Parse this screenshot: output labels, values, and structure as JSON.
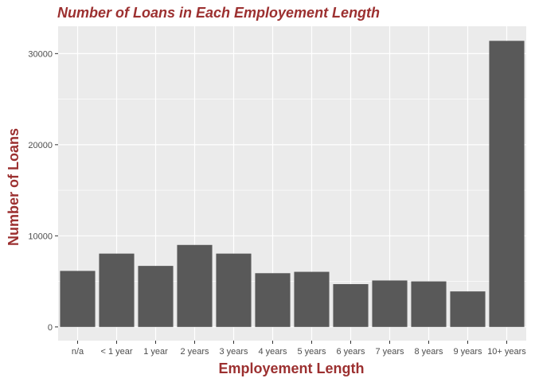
{
  "chart_data": {
    "type": "bar",
    "title": "Number of Loans in Each Employement Length",
    "xlabel": "Employement Length",
    "ylabel": "Number of Loans",
    "categories": [
      "n/a",
      "< 1 year",
      "1 year",
      "2 years",
      "3 years",
      "4 years",
      "5 years",
      "6 years",
      "7 years",
      "8 years",
      "9 years",
      "10+ years"
    ],
    "values": [
      6150,
      8050,
      6700,
      9000,
      8050,
      5900,
      6050,
      4700,
      5100,
      5000,
      3900,
      31400
    ],
    "yticks": [
      0,
      10000,
      20000,
      30000
    ],
    "ylim": [
      -1500,
      33000
    ],
    "grid": true,
    "colors": {
      "bar": "#595959",
      "panel": "#ebebeb",
      "grid": "#ffffff",
      "title": "#9c3030"
    }
  }
}
